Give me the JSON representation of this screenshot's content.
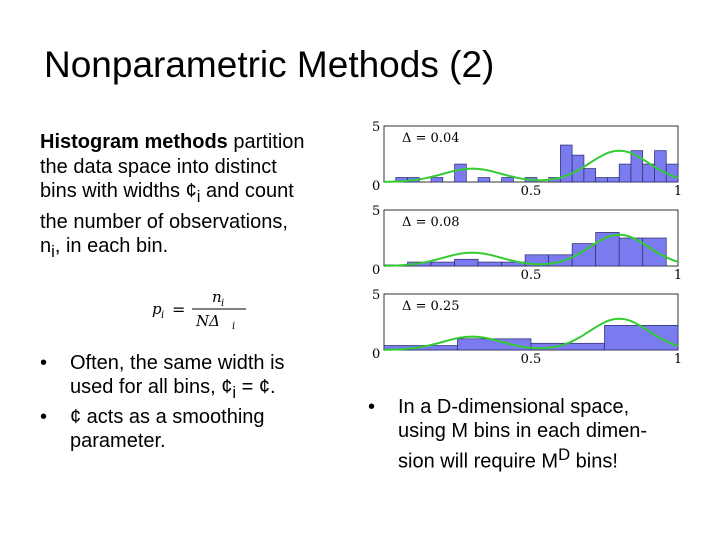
{
  "slide": {
    "title": "Nonparametric Methods (2)",
    "intro": {
      "bold": "Histogram methods",
      "line1_rest": " partition",
      "line2": "the data space into distinct",
      "line3_pre": "bins with widths ¢",
      "line3_sub": "i",
      "line3_post": " and count",
      "line4": "the number of observations,",
      "line5_pre": "n",
      "line5_sub": "i",
      "line5_post": ", in each bin."
    },
    "formula": {
      "lhs": "p",
      "lhs_sub": "i",
      "num": "n",
      "num_sub": "i",
      "den": "NΔ",
      "den_sub": "i"
    },
    "bullets_left": [
      {
        "line1": "Often, the same width is",
        "line2_pre": "used for all bins, ¢",
        "line2_sub": "i",
        "line2_post": " = ¢."
      },
      {
        "line1": "¢ acts as a smoothing",
        "line2": "parameter."
      }
    ],
    "bullets_right": [
      {
        "line1": "In a D-dimensional space,",
        "line2": "using M bins in each dimen-",
        "line3_pre": "sion will require M",
        "line3_sup": "D",
        "line3_post": " bins!"
      }
    ]
  },
  "chart_data": {
    "type": "bar",
    "ylim": [
      0,
      5
    ],
    "xlim": [
      0,
      1
    ],
    "ytick_labels": [
      "0",
      "5"
    ],
    "xtick_labels": [
      "0",
      "0.5",
      "1"
    ],
    "bar_color": "#7b7bf0",
    "curve_color": "#33cc33",
    "panels": [
      {
        "label": "Δ = 0.04",
        "bin_width": 0.04,
        "values": [
          0,
          0.4,
          0.4,
          0,
          0.4,
          0,
          1.6,
          0,
          0.4,
          0,
          0.4,
          0,
          0.4,
          0,
          0.4,
          3.3,
          2.4,
          1.2,
          0.4,
          0.4,
          1.6,
          2.8,
          1.6,
          2.8,
          1.6
        ]
      },
      {
        "label": "Δ = 0.08",
        "bin_width": 0.08,
        "values": [
          0.1,
          0.35,
          0.35,
          0.6,
          0.35,
          0.35,
          1.0,
          1.0,
          2.0,
          3.0,
          2.5,
          2.5
        ]
      },
      {
        "label": "Δ = 0.25",
        "bin_width": 0.25,
        "values": [
          0.4,
          1.0,
          0.6,
          2.2
        ]
      }
    ]
  }
}
